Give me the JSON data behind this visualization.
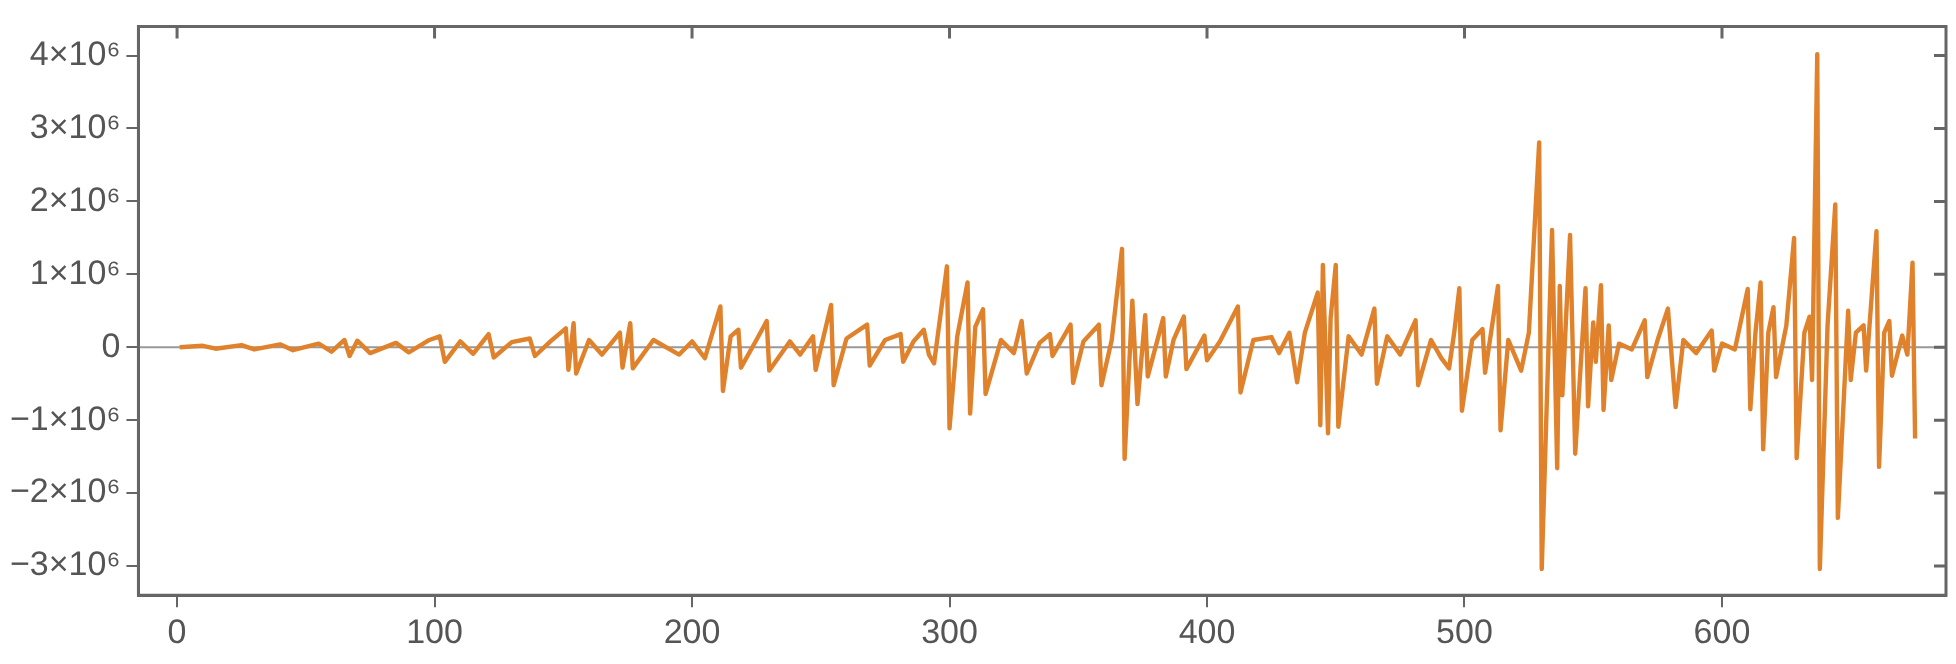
{
  "chart_data": {
    "type": "line",
    "xlim": [
      -15,
      687
    ],
    "ylim": [
      -3400000,
      4400000
    ],
    "xticks": [
      0,
      100,
      200,
      300,
      400,
      500,
      600
    ],
    "yticks": [
      {
        "value": -3000000,
        "label": "−3×10⁶"
      },
      {
        "value": -2000000,
        "label": "−2×10⁶"
      },
      {
        "value": -1000000,
        "label": "−1×10⁶"
      },
      0,
      {
        "value": 1000000,
        "label": "1×10⁶"
      },
      {
        "value": 2000000,
        "label": "2×10⁶"
      },
      {
        "value": 3000000,
        "label": "3×10⁶"
      },
      {
        "value": 4000000,
        "label": "4×10⁶"
      }
    ],
    "grid": false,
    "legend": false,
    "marker": "none",
    "line_style": "solid",
    "ref_lines": [
      {
        "axis": "y",
        "value": 0,
        "color": "#999999"
      }
    ],
    "series": [
      {
        "color": "#e0822c",
        "x": [
          1,
          10,
          15,
          25,
          30,
          40,
          45,
          55,
          60,
          65,
          67,
          70,
          75,
          85,
          90,
          98,
          102,
          104,
          110,
          115,
          121,
          123,
          130,
          137,
          139,
          145,
          151,
          152,
          154,
          155,
          160,
          165,
          172,
          173,
          176,
          177,
          185,
          195,
          200,
          205,
          211,
          212,
          215,
          218,
          219,
          225,
          229,
          230,
          238,
          242,
          247,
          248,
          254,
          255,
          260,
          268,
          269,
          275,
          281,
          282,
          286,
          290,
          292,
          294,
          299,
          300,
          303,
          307,
          308,
          310,
          313,
          314,
          320,
          325,
          328,
          330,
          335,
          339,
          340,
          347,
          348,
          352,
          358,
          359,
          363,
          367,
          368,
          371,
          373,
          376,
          377,
          383,
          384,
          387,
          391,
          392,
          399,
          400,
          405,
          412,
          413,
          418,
          425,
          428,
          432,
          435,
          438,
          443,
          444,
          445,
          447,
          448,
          450,
          451,
          455,
          460,
          465,
          466,
          470,
          475,
          481,
          482,
          487,
          491,
          494,
          496,
          498,
          499,
          503,
          507,
          508,
          513,
          514,
          517,
          522,
          525,
          529,
          530,
          534,
          536,
          537,
          538,
          541,
          543,
          547,
          548,
          550,
          551,
          553,
          554,
          556,
          557,
          560,
          565,
          570,
          571,
          575,
          579,
          582,
          585,
          590,
          596,
          597,
          600,
          605,
          610,
          611,
          613,
          615,
          616,
          618,
          620,
          621,
          625,
          628,
          629,
          632,
          634,
          635,
          637,
          638,
          641,
          644,
          645,
          649,
          650,
          652,
          655,
          656,
          660,
          661,
          663,
          665,
          666,
          670,
          672,
          674,
          675
        ],
        "values": [
          0,
          20000,
          -20000,
          30000,
          -30000,
          40000,
          -40000,
          50000,
          -60000,
          100000,
          -120000,
          90000,
          -80000,
          60000,
          -70000,
          100000,
          150000,
          -200000,
          80000,
          -90000,
          180000,
          -140000,
          70000,
          120000,
          -120000,
          80000,
          260000,
          -310000,
          330000,
          -360000,
          100000,
          -100000,
          200000,
          -280000,
          330000,
          -290000,
          100000,
          -100000,
          80000,
          -150000,
          560000,
          -600000,
          150000,
          240000,
          -280000,
          100000,
          360000,
          -320000,
          80000,
          -100000,
          150000,
          -310000,
          580000,
          -520000,
          120000,
          310000,
          -250000,
          100000,
          180000,
          -200000,
          80000,
          240000,
          -100000,
          -220000,
          1110000,
          -1110000,
          150000,
          890000,
          -910000,
          280000,
          520000,
          -640000,
          100000,
          -80000,
          360000,
          -360000,
          60000,
          180000,
          -120000,
          310000,
          -490000,
          80000,
          310000,
          -520000,
          100000,
          1350000,
          -1530000,
          640000,
          -780000,
          440000,
          -400000,
          400000,
          -400000,
          100000,
          420000,
          -300000,
          160000,
          -180000,
          80000,
          560000,
          -620000,
          100000,
          140000,
          -80000,
          200000,
          -480000,
          200000,
          750000,
          -1070000,
          1130000,
          -1180000,
          400000,
          1130000,
          -1090000,
          150000,
          -100000,
          530000,
          -500000,
          150000,
          -100000,
          370000,
          -520000,
          100000,
          -150000,
          -290000,
          200000,
          810000,
          -870000,
          100000,
          250000,
          -350000,
          840000,
          -1140000,
          100000,
          -320000,
          200000,
          2810000,
          -3040000,
          1610000,
          -1660000,
          840000,
          -660000,
          1540000,
          -1460000,
          810000,
          -810000,
          340000,
          -200000,
          850000,
          -860000,
          300000,
          -450000,
          50000,
          -30000,
          370000,
          -410000,
          100000,
          530000,
          -820000,
          100000,
          -80000,
          230000,
          -320000,
          50000,
          -30000,
          800000,
          -850000,
          200000,
          890000,
          -1400000,
          200000,
          550000,
          -410000,
          300000,
          1500000,
          -1520000,
          200000,
          420000,
          -450000,
          4020000,
          -3040000,
          300000,
          1960000,
          -2340000,
          500000,
          -450000,
          200000,
          300000,
          -320000,
          1590000,
          -1640000,
          200000,
          360000,
          -390000,
          160000,
          -100000,
          1160000,
          -1250000
        ]
      }
    ]
  }
}
